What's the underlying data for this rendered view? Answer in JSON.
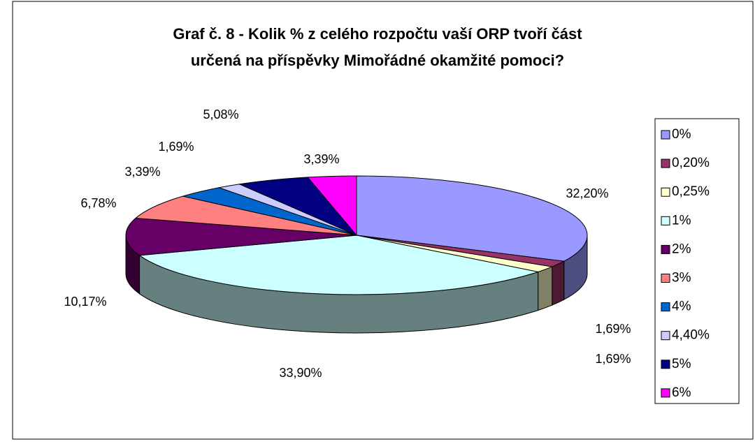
{
  "chart_data": {
    "type": "pie3d",
    "title": [
      "Graf č. 8 - Kolik % z celého rozpočtu vaší ORP tvoří část",
      "určená na příspěvky Mimořádné okamžité pomoci?"
    ],
    "categories": [
      "0%",
      "0,20%",
      "0,25%",
      "1%",
      "2%",
      "3%",
      "4%",
      "4,40%",
      "5%",
      "6%"
    ],
    "values": [
      32.2,
      1.69,
      1.69,
      33.9,
      10.17,
      6.78,
      3.39,
      1.69,
      5.08,
      3.39
    ],
    "value_labels": [
      "32,20%",
      "1,69%",
      "1,69%",
      "33,90%",
      "10,17%",
      "6,78%",
      "3,39%",
      "1,69%",
      "5,08%",
      "3,39%"
    ],
    "colors": [
      "#9999ff",
      "#993366",
      "#ffffcc",
      "#ccffff",
      "#660066",
      "#ff8080",
      "#0066cc",
      "#ccccff",
      "#000080",
      "#ff00ff"
    ],
    "legend": "right"
  }
}
